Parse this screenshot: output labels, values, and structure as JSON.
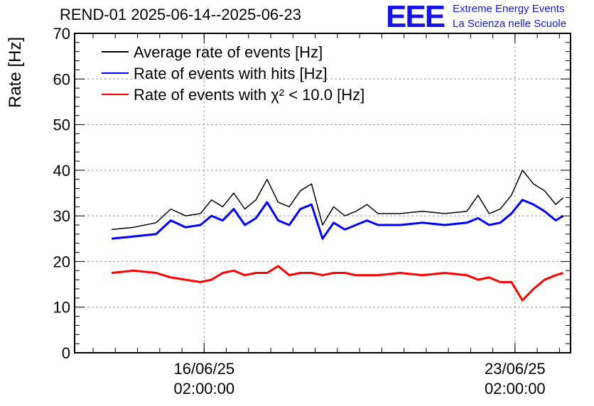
{
  "header": {
    "title": "REND-01 2025-06-14--2025-06-23",
    "logo_text": "EEE",
    "logo_line1": "Extreme Energy Events",
    "logo_line2": "La Scienza nelle Scuole"
  },
  "colors": {
    "average": "#000000",
    "hits": "#0000ff",
    "chi2": "#ff0000",
    "logo": "#1414e6",
    "grid": "#9a9a9a"
  },
  "chart_data": {
    "type": "line",
    "ylabel": "Rate [Hz]",
    "ylim": [
      0,
      70
    ],
    "yticks": [
      0,
      10,
      20,
      30,
      40,
      50,
      60,
      70
    ],
    "xlim": [
      "2025-06-13 04:00",
      "2025-06-24 08:00"
    ],
    "xticks": [
      {
        "date": "16/06/25",
        "time": "02:00:00"
      },
      {
        "date": "23/06/25",
        "time": "02:00:00"
      }
    ],
    "grid": true,
    "legend_position": "top-left",
    "series": [
      {
        "name": "Average rate of events [Hz]",
        "color": "#000000",
        "x": [
          "2025-06-14 00:00",
          "2025-06-14 12:00",
          "2025-06-15 00:00",
          "2025-06-15 08:00",
          "2025-06-15 16:00",
          "2025-06-16 00:00",
          "2025-06-16 06:00",
          "2025-06-16 12:00",
          "2025-06-16 18:00",
          "2025-06-17 00:00",
          "2025-06-17 06:00",
          "2025-06-17 12:00",
          "2025-06-17 18:00",
          "2025-06-18 00:00",
          "2025-06-18 06:00",
          "2025-06-18 12:00",
          "2025-06-18 18:00",
          "2025-06-19 00:00",
          "2025-06-19 06:00",
          "2025-06-19 12:00",
          "2025-06-19 18:00",
          "2025-06-20 00:00",
          "2025-06-20 12:00",
          "2025-06-21 00:00",
          "2025-06-21 12:00",
          "2025-06-22 00:00",
          "2025-06-22 06:00",
          "2025-06-22 12:00",
          "2025-06-22 18:00",
          "2025-06-23 00:00",
          "2025-06-23 06:00",
          "2025-06-23 12:00",
          "2025-06-23 18:00",
          "2025-06-24 00:00",
          "2025-06-24 04:00"
        ],
        "values": [
          27,
          27.5,
          28.5,
          31.5,
          30,
          30.5,
          33.5,
          32,
          35,
          31.5,
          33.5,
          38,
          33,
          32,
          35.5,
          37,
          28,
          32,
          30,
          31,
          32.5,
          30.5,
          30.5,
          31,
          30.5,
          31,
          34.5,
          30.5,
          31.5,
          34.5,
          40,
          37,
          35.5,
          32.5,
          34
        ]
      },
      {
        "name": "Rate of events with hits [Hz]",
        "color": "#0000ff",
        "x": [
          "2025-06-14 00:00",
          "2025-06-14 12:00",
          "2025-06-15 00:00",
          "2025-06-15 08:00",
          "2025-06-15 16:00",
          "2025-06-16 00:00",
          "2025-06-16 06:00",
          "2025-06-16 12:00",
          "2025-06-16 18:00",
          "2025-06-17 00:00",
          "2025-06-17 06:00",
          "2025-06-17 12:00",
          "2025-06-17 18:00",
          "2025-06-18 00:00",
          "2025-06-18 06:00",
          "2025-06-18 12:00",
          "2025-06-18 18:00",
          "2025-06-19 00:00",
          "2025-06-19 06:00",
          "2025-06-19 12:00",
          "2025-06-19 18:00",
          "2025-06-20 00:00",
          "2025-06-20 12:00",
          "2025-06-21 00:00",
          "2025-06-21 12:00",
          "2025-06-22 00:00",
          "2025-06-22 06:00",
          "2025-06-22 12:00",
          "2025-06-22 18:00",
          "2025-06-23 00:00",
          "2025-06-23 06:00",
          "2025-06-23 12:00",
          "2025-06-23 18:00",
          "2025-06-24 00:00",
          "2025-06-24 04:00"
        ],
        "values": [
          25,
          25.5,
          26,
          29,
          27.5,
          28,
          30,
          29,
          31.5,
          28,
          29.5,
          33,
          29,
          28,
          31.5,
          32.5,
          25,
          28.5,
          27,
          28,
          29,
          28,
          28,
          28.5,
          28,
          28.5,
          29.5,
          28,
          28.5,
          30.5,
          33.5,
          32.5,
          31,
          29,
          30
        ]
      },
      {
        "name": "Rate of events with χ² < 10.0 [Hz]",
        "color": "#ff0000",
        "x": [
          "2025-06-14 00:00",
          "2025-06-14 12:00",
          "2025-06-15 00:00",
          "2025-06-15 08:00",
          "2025-06-15 16:00",
          "2025-06-16 00:00",
          "2025-06-16 06:00",
          "2025-06-16 12:00",
          "2025-06-16 18:00",
          "2025-06-17 00:00",
          "2025-06-17 06:00",
          "2025-06-17 12:00",
          "2025-06-17 18:00",
          "2025-06-18 00:00",
          "2025-06-18 06:00",
          "2025-06-18 12:00",
          "2025-06-18 18:00",
          "2025-06-19 00:00",
          "2025-06-19 06:00",
          "2025-06-19 12:00",
          "2025-06-19 18:00",
          "2025-06-20 00:00",
          "2025-06-20 12:00",
          "2025-06-21 00:00",
          "2025-06-21 12:00",
          "2025-06-22 00:00",
          "2025-06-22 06:00",
          "2025-06-22 12:00",
          "2025-06-22 18:00",
          "2025-06-23 00:00",
          "2025-06-23 06:00",
          "2025-06-23 12:00",
          "2025-06-23 18:00",
          "2025-06-24 00:00",
          "2025-06-24 04:00"
        ],
        "values": [
          17.5,
          18,
          17.5,
          16.5,
          16,
          15.5,
          16,
          17.5,
          18,
          17,
          17.5,
          17.5,
          19,
          17,
          17.5,
          17.5,
          17,
          17.5,
          17.5,
          17,
          17,
          17,
          17.5,
          17,
          17.5,
          17,
          16,
          16.5,
          15.5,
          15.5,
          11.5,
          14,
          16,
          17,
          17.5
        ]
      }
    ]
  }
}
